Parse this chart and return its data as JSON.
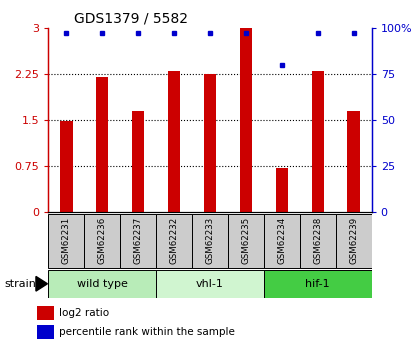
{
  "title": "GDS1379 / 5582",
  "samples": [
    "GSM62231",
    "GSM62236",
    "GSM62237",
    "GSM62232",
    "GSM62233",
    "GSM62235",
    "GSM62234",
    "GSM62238",
    "GSM62239"
  ],
  "log2_ratio": [
    1.48,
    2.2,
    1.65,
    2.3,
    2.25,
    3.0,
    0.72,
    2.3,
    1.65
  ],
  "percentile_rank": [
    97,
    97,
    97,
    97,
    97,
    97,
    80,
    97,
    97
  ],
  "groups": [
    {
      "label": "wild type",
      "start": 0,
      "end": 3,
      "color": "#b8ecb8"
    },
    {
      "label": "vhl-1",
      "start": 3,
      "end": 6,
      "color": "#d0f5d0"
    },
    {
      "label": "hif-1",
      "start": 6,
      "end": 9,
      "color": "#44cc44"
    }
  ],
  "ylim": [
    0,
    3.0
  ],
  "yticks": [
    0,
    0.75,
    1.5,
    2.25,
    3.0
  ],
  "ytick_labels": [
    "0",
    "0.75",
    "1.5",
    "2.25",
    "3"
  ],
  "right_yticks": [
    0,
    25,
    50,
    75,
    100
  ],
  "right_ytick_labels": [
    "0",
    "25",
    "50",
    "75",
    "100%"
  ],
  "bar_color": "#cc0000",
  "dot_color": "#0000cc",
  "left_axis_color": "#cc0000",
  "right_axis_color": "#0000cc",
  "bg_color": "#ffffff",
  "label_box_color": "#cccccc",
  "bar_width": 0.35
}
